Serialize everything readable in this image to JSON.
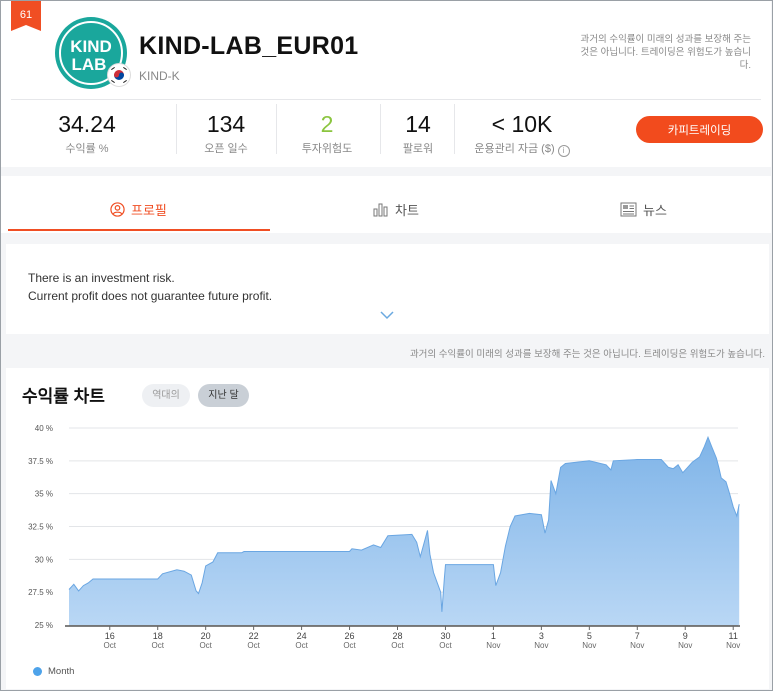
{
  "header": {
    "rank": "61",
    "avatar": {
      "line1": "KIND",
      "line2": "LAB"
    },
    "strategy_name": "KIND-LAB_EUR01",
    "provider": "KIND-K",
    "disclaimer": "과거의 수익률이 미래의 성과를 보장해 주는 것은 아닙니다. 트레이딩은 위험도가 높습니다.",
    "flag_icon": "korea-flag-icon"
  },
  "stats": [
    {
      "value": "34.24",
      "label": "수익률 %"
    },
    {
      "value": "134",
      "label": "오픈 일수"
    },
    {
      "value": "2",
      "label": "투자위험도",
      "color": "#8bc53f"
    },
    {
      "value": "14",
      "label": "팔로워"
    },
    {
      "value": "< 10K",
      "label": "운용관리 자금 ($)",
      "icon": "info-icon"
    }
  ],
  "copy_button": "카피트레이딩",
  "tabs": [
    {
      "label": "프로필",
      "icon": "user-icon",
      "active": true
    },
    {
      "label": "차트",
      "icon": "bar-chart-icon",
      "active": false
    },
    {
      "label": "뉴스",
      "icon": "newspaper-icon",
      "active": false
    }
  ],
  "profile": {
    "line1": "There is an investment risk.",
    "line2": "Current profit does not guarantee future profit."
  },
  "disclaimer_mid": "과거의 수익률이 미래의 성과를 보장해 주는 것은 아닙니다. 트레이딩은 위험도가 높습니다.",
  "chart_section": {
    "title": "수익률 차트",
    "range_options": [
      {
        "label": "역대의",
        "selected": false
      },
      {
        "label": "지난 달",
        "selected": true
      }
    ],
    "legend": "Month"
  },
  "colors": {
    "accent": "#f04e23",
    "area_top": "#7fb4e8",
    "area_bottom": "#b9d7f5",
    "legend": "#4ea3ea"
  },
  "chart_data": {
    "type": "area",
    "series_name": "Month",
    "y_unit": "%",
    "ylim": [
      25,
      40
    ],
    "y_ticks": [
      25,
      27.5,
      30,
      32.5,
      35,
      37.5,
      40
    ],
    "y_tick_labels": [
      "25 %",
      "27.5 %",
      "30 %",
      "32.5 %",
      "35 %",
      "37.5 %",
      "40 %"
    ],
    "x_range_days": [
      14.3,
      42.2
    ],
    "x_ticks": [
      {
        "day": 16,
        "label": "16",
        "month": "Oct"
      },
      {
        "day": 18,
        "label": "18",
        "month": "Oct"
      },
      {
        "day": 20,
        "label": "20",
        "month": "Oct"
      },
      {
        "day": 22,
        "label": "22",
        "month": "Oct"
      },
      {
        "day": 24,
        "label": "24",
        "month": "Oct"
      },
      {
        "day": 26,
        "label": "26",
        "month": "Oct"
      },
      {
        "day": 28,
        "label": "28",
        "month": "Oct"
      },
      {
        "day": 30,
        "label": "30",
        "month": "Oct"
      },
      {
        "day": 32,
        "label": "1",
        "month": "Nov"
      },
      {
        "day": 34,
        "label": "3",
        "month": "Nov"
      },
      {
        "day": 36,
        "label": "5",
        "month": "Nov"
      },
      {
        "day": 38,
        "label": "7",
        "month": "Nov"
      },
      {
        "day": 40,
        "label": "9",
        "month": "Nov"
      },
      {
        "day": 42,
        "label": "11",
        "month": "Nov"
      }
    ],
    "points": [
      [
        14.3,
        27.7
      ],
      [
        14.5,
        28.1
      ],
      [
        14.7,
        27.6
      ],
      [
        14.9,
        28.0
      ],
      [
        15.1,
        28.2
      ],
      [
        15.3,
        28.5
      ],
      [
        16.5,
        28.5
      ],
      [
        18.0,
        28.5
      ],
      [
        18.2,
        28.9
      ],
      [
        18.8,
        29.2
      ],
      [
        19.1,
        29.1
      ],
      [
        19.4,
        28.8
      ],
      [
        19.6,
        27.6
      ],
      [
        19.7,
        27.4
      ],
      [
        19.85,
        28.2
      ],
      [
        20.0,
        29.5
      ],
      [
        20.3,
        29.8
      ],
      [
        20.5,
        30.5
      ],
      [
        21.5,
        30.5
      ],
      [
        21.6,
        30.6
      ],
      [
        23.0,
        30.6
      ],
      [
        26.0,
        30.6
      ],
      [
        26.1,
        30.8
      ],
      [
        26.5,
        30.7
      ],
      [
        27.0,
        31.1
      ],
      [
        27.3,
        30.9
      ],
      [
        27.6,
        31.8
      ],
      [
        28.6,
        31.9
      ],
      [
        28.8,
        31.3
      ],
      [
        28.95,
        30.2
      ],
      [
        29.1,
        31.2
      ],
      [
        29.25,
        32.2
      ],
      [
        29.35,
        30.4
      ],
      [
        29.5,
        29.0
      ],
      [
        29.8,
        27.5
      ],
      [
        29.85,
        26.0
      ],
      [
        29.95,
        28.5
      ],
      [
        30.0,
        29.6
      ],
      [
        32.0,
        29.6
      ],
      [
        32.1,
        28.0
      ],
      [
        32.3,
        29.0
      ],
      [
        32.5,
        31.0
      ],
      [
        32.7,
        32.5
      ],
      [
        32.9,
        33.3
      ],
      [
        33.5,
        33.5
      ],
      [
        34.0,
        33.4
      ],
      [
        34.15,
        32.0
      ],
      [
        34.3,
        33.0
      ],
      [
        34.4,
        36.0
      ],
      [
        34.6,
        35.0
      ],
      [
        34.8,
        37.0
      ],
      [
        35.0,
        37.3
      ],
      [
        36.0,
        37.5
      ],
      [
        36.7,
        37.2
      ],
      [
        36.9,
        36.8
      ],
      [
        37.0,
        37.5
      ],
      [
        38.0,
        37.6
      ],
      [
        39.0,
        37.6
      ],
      [
        39.3,
        37.0
      ],
      [
        39.5,
        36.9
      ],
      [
        39.7,
        37.2
      ],
      [
        39.9,
        36.6
      ],
      [
        40.1,
        37.0
      ],
      [
        40.3,
        37.4
      ],
      [
        40.6,
        37.8
      ],
      [
        40.8,
        38.6
      ],
      [
        40.95,
        39.3
      ],
      [
        41.1,
        38.6
      ],
      [
        41.3,
        37.7
      ],
      [
        41.4,
        37.0
      ],
      [
        41.5,
        36.2
      ],
      [
        41.7,
        35.9
      ],
      [
        41.85,
        35.0
      ],
      [
        42.0,
        34.0
      ],
      [
        42.15,
        33.3
      ],
      [
        42.25,
        34.2
      ]
    ]
  }
}
